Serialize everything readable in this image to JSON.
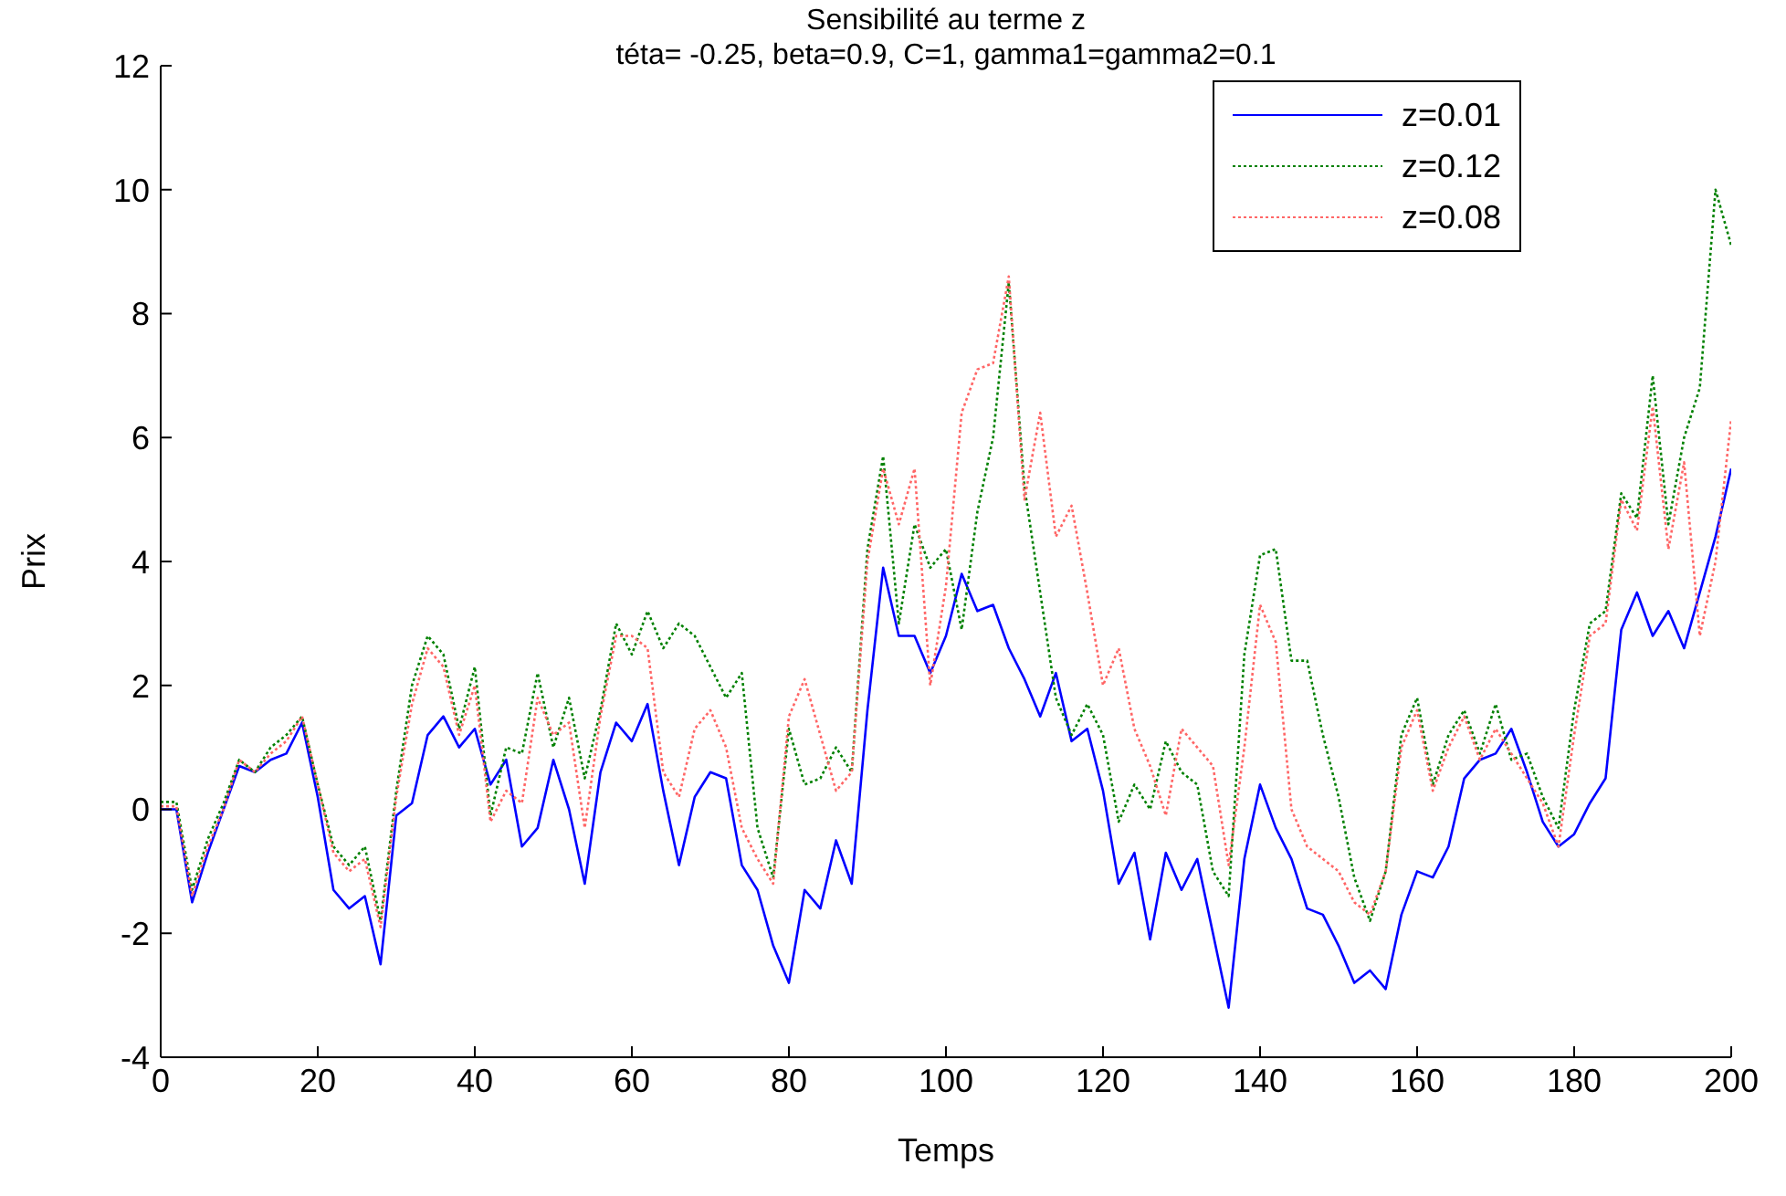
{
  "chart_data": {
    "type": "line",
    "title": "Sensibilité au terme z",
    "subtitle": "téta= -0.25, beta=0.9, C=1, gamma1=gamma2=0.1",
    "xlabel": "Temps",
    "ylabel": "Prix",
    "x": [
      0,
      2,
      4,
      6,
      8,
      10,
      12,
      14,
      16,
      18,
      20,
      22,
      24,
      26,
      28,
      30,
      32,
      34,
      36,
      38,
      40,
      42,
      44,
      46,
      48,
      50,
      52,
      54,
      56,
      58,
      60,
      62,
      64,
      66,
      68,
      70,
      72,
      74,
      76,
      78,
      80,
      82,
      84,
      86,
      88,
      90,
      92,
      94,
      96,
      98,
      100,
      102,
      104,
      106,
      108,
      110,
      112,
      114,
      116,
      118,
      120,
      122,
      124,
      126,
      128,
      130,
      132,
      134,
      136,
      138,
      140,
      142,
      144,
      146,
      148,
      150,
      152,
      154,
      156,
      158,
      160,
      162,
      164,
      166,
      168,
      170,
      172,
      174,
      176,
      178,
      180,
      182,
      184,
      186,
      188,
      190,
      192,
      194,
      196,
      198,
      200
    ],
    "series": [
      {
        "name": "z=0.01",
        "color": "#0000ff",
        "line_style": "solid",
        "values": [
          0.0,
          0.0,
          -1.5,
          -0.7,
          0,
          0.7,
          0.6,
          0.8,
          0.9,
          1.4,
          0.2,
          -1.3,
          -1.6,
          -1.4,
          -2.5,
          -0.1,
          0.1,
          1.2,
          1.5,
          1.0,
          1.3,
          0.4,
          0.8,
          -0.6,
          -0.3,
          0.8,
          0.0,
          -1.2,
          0.6,
          1.4,
          1.1,
          1.7,
          0.3,
          -0.9,
          0.2,
          0.6,
          0.5,
          -0.9,
          -1.3,
          -2.2,
          -2.8,
          -1.3,
          -1.6,
          -0.5,
          -1.2,
          1.6,
          3.9,
          2.8,
          2.8,
          2.2,
          2.8,
          3.8,
          3.2,
          3.3,
          2.6,
          2.1,
          1.5,
          2.2,
          1.1,
          1.3,
          0.3,
          -1.2,
          -0.7,
          -2.1,
          -0.7,
          -1.3,
          -0.8,
          -2.0,
          -3.2,
          -0.8,
          0.4,
          -0.3,
          -0.8,
          -1.6,
          -1.7,
          -2.2,
          -2.8,
          -2.6,
          -2.9,
          -1.7,
          -1.0,
          -1.1,
          -0.6,
          0.5,
          0.8,
          0.9,
          1.3,
          0.6,
          -0.2,
          -0.6,
          -0.4,
          0.1,
          0.5,
          2.9,
          3.5,
          2.8,
          3.2,
          2.6,
          3.5,
          4.4,
          5.5
        ]
      },
      {
        "name": "z=0.12",
        "color": "#008000",
        "line_style": "dotted",
        "values": [
          0.12,
          0.12,
          -1.3,
          -0.48,
          0.1,
          0.8,
          0.6,
          1.0,
          1.2,
          1.5,
          0.4,
          -0.6,
          -0.9,
          -0.6,
          -1.8,
          0.3,
          2.0,
          2.8,
          2.5,
          1.3,
          2.3,
          -0.1,
          1.0,
          0.9,
          2.2,
          1.0,
          1.8,
          0.5,
          1.6,
          3.0,
          2.5,
          3.2,
          2.6,
          3.0,
          2.8,
          2.3,
          1.8,
          2.2,
          -0.3,
          -1.1,
          1.3,
          0.4,
          0.5,
          1.0,
          0.6,
          4.2,
          5.7,
          3.0,
          4.6,
          3.9,
          4.2,
          2.9,
          4.8,
          6.0,
          8.5,
          5.2,
          3.5,
          1.8,
          1.2,
          1.7,
          1.2,
          -0.2,
          0.4,
          0.0,
          1.1,
          0.6,
          0.4,
          -1.0,
          -1.4,
          2.5,
          4.1,
          4.2,
          2.4,
          2.4,
          1.2,
          0.2,
          -1.1,
          -1.8,
          -1.0,
          1.2,
          1.8,
          0.4,
          1.2,
          1.6,
          0.9,
          1.7,
          0.8,
          0.9,
          0.2,
          -0.3,
          1.6,
          3.0,
          3.2,
          5.1,
          4.7,
          7.0,
          4.6,
          6.0,
          6.8,
          10.0,
          9.1
        ]
      },
      {
        "name": "z=0.08",
        "color": "#ff6666",
        "line_style": "dotted",
        "values": [
          0.05,
          0.05,
          -1.4,
          -0.6,
          0,
          0.8,
          0.6,
          0.9,
          1.1,
          1.5,
          0.4,
          -0.7,
          -1.0,
          -0.8,
          -1.9,
          0.2,
          1.7,
          2.6,
          2.3,
          1.2,
          2.0,
          -0.2,
          0.3,
          0.1,
          1.8,
          1.2,
          1.4,
          -0.3,
          1.5,
          2.8,
          2.8,
          2.6,
          0.6,
          0.2,
          1.3,
          1.6,
          1.0,
          -0.3,
          -0.8,
          -1.2,
          1.5,
          2.1,
          1.2,
          0.3,
          0.6,
          4.0,
          5.5,
          4.6,
          5.5,
          2.0,
          3.6,
          6.4,
          7.1,
          7.2,
          8.6,
          5.0,
          6.4,
          4.4,
          4.9,
          3.5,
          2.0,
          2.6,
          1.3,
          0.7,
          -0.1,
          1.3,
          1.0,
          0.7,
          -0.9,
          1.0,
          3.3,
          2.7,
          0.0,
          -0.6,
          -0.8,
          -1.0,
          -1.5,
          -1.7,
          -1.0,
          1.0,
          1.6,
          0.3,
          1.0,
          1.5,
          0.8,
          1.3,
          0.9,
          0.5,
          0.1,
          -0.6,
          1.2,
          2.8,
          3.0,
          5.0,
          4.5,
          6.5,
          4.2,
          5.6,
          2.8,
          4.0,
          6.3
        ]
      }
    ],
    "xlim": [
      0,
      200
    ],
    "xticks": [
      0,
      20,
      40,
      60,
      80,
      100,
      120,
      140,
      160,
      180,
      200
    ],
    "ylim": [
      -4,
      12
    ],
    "yticks": [
      -4,
      -2,
      0,
      2,
      4,
      6,
      8,
      10,
      12
    ],
    "grid": false,
    "legend": "top right"
  }
}
